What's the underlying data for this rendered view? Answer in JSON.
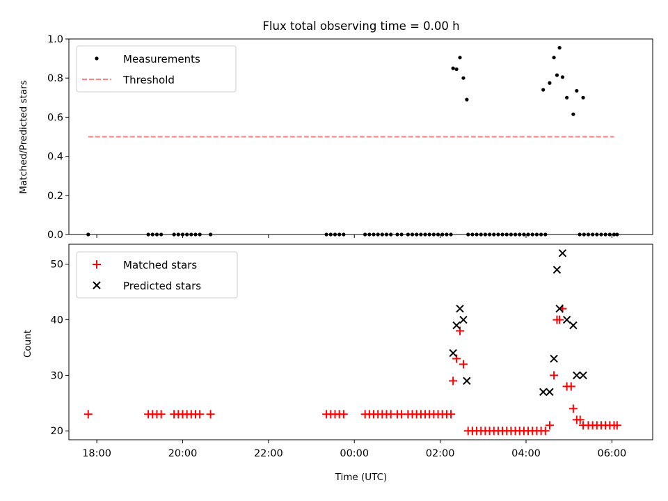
{
  "chart_data": [
    {
      "type": "scatter",
      "title": "Flux total observing time = 0.00 h",
      "xlabel": "",
      "ylabel": "Matched/Predicted stars",
      "ylim": [
        0,
        1
      ],
      "xlim_hours": [
        -6.65,
        6.95
      ],
      "yticks": [
        "0.0",
        "0.2",
        "0.4",
        "0.6",
        "0.8",
        "1.0"
      ],
      "legend_position": "top-left",
      "series": [
        {
          "name": "Measurements",
          "marker": "dot",
          "color": "#000000",
          "points": [
            [
              -6.2,
              0.0
            ],
            [
              -4.8,
              0.0
            ],
            [
              -4.7,
              0.0
            ],
            [
              -4.6,
              0.0
            ],
            [
              -4.5,
              0.0
            ],
            [
              -4.2,
              0.0
            ],
            [
              -4.1,
              0.0
            ],
            [
              -4.0,
              0.0
            ],
            [
              -3.9,
              0.0
            ],
            [
              -3.8,
              0.0
            ],
            [
              -3.7,
              0.0
            ],
            [
              -3.6,
              0.0
            ],
            [
              -3.35,
              0.0
            ],
            [
              -0.65,
              0.0
            ],
            [
              -0.55,
              0.0
            ],
            [
              -0.45,
              0.0
            ],
            [
              -0.35,
              0.0
            ],
            [
              -0.25,
              0.0
            ],
            [
              0.25,
              0.0
            ],
            [
              0.35,
              0.0
            ],
            [
              0.45,
              0.0
            ],
            [
              0.55,
              0.0
            ],
            [
              0.65,
              0.0
            ],
            [
              0.75,
              0.0
            ],
            [
              0.85,
              0.0
            ],
            [
              1.0,
              0.0
            ],
            [
              1.1,
              0.0
            ],
            [
              1.25,
              0.0
            ],
            [
              1.35,
              0.0
            ],
            [
              1.45,
              0.0
            ],
            [
              1.55,
              0.0
            ],
            [
              1.65,
              0.0
            ],
            [
              1.75,
              0.0
            ],
            [
              1.85,
              0.0
            ],
            [
              1.95,
              0.0
            ],
            [
              2.05,
              0.0
            ],
            [
              2.15,
              0.0
            ],
            [
              2.25,
              0.0
            ],
            [
              2.3,
              0.85
            ],
            [
              2.38,
              0.845
            ],
            [
              2.46,
              0.905
            ],
            [
              2.54,
              0.8
            ],
            [
              2.62,
              0.69
            ],
            [
              2.65,
              0.0
            ],
            [
              2.75,
              0.0
            ],
            [
              2.85,
              0.0
            ],
            [
              2.95,
              0.0
            ],
            [
              3.05,
              0.0
            ],
            [
              3.15,
              0.0
            ],
            [
              3.25,
              0.0
            ],
            [
              3.35,
              0.0
            ],
            [
              3.45,
              0.0
            ],
            [
              3.55,
              0.0
            ],
            [
              3.65,
              0.0
            ],
            [
              3.75,
              0.0
            ],
            [
              3.85,
              0.0
            ],
            [
              3.95,
              0.0
            ],
            [
              4.05,
              0.0
            ],
            [
              4.15,
              0.0
            ],
            [
              4.25,
              0.0
            ],
            [
              4.35,
              0.0
            ],
            [
              4.45,
              0.0
            ],
            [
              4.4,
              0.74
            ],
            [
              4.55,
              0.775
            ],
            [
              4.65,
              0.905
            ],
            [
              4.72,
              0.815
            ],
            [
              4.78,
              0.955
            ],
            [
              4.85,
              0.805
            ],
            [
              4.95,
              0.7
            ],
            [
              5.1,
              0.615
            ],
            [
              5.18,
              0.735
            ],
            [
              5.33,
              0.7
            ],
            [
              5.25,
              0.0
            ],
            [
              5.35,
              0.0
            ],
            [
              5.45,
              0.0
            ],
            [
              5.55,
              0.0
            ],
            [
              5.65,
              0.0
            ],
            [
              5.75,
              0.0
            ],
            [
              5.85,
              0.0
            ],
            [
              5.95,
              0.0
            ],
            [
              6.05,
              0.0
            ],
            [
              6.12,
              0.0
            ]
          ]
        },
        {
          "name": "Threshold",
          "marker": "dashed-line",
          "color": "#ff7f7f",
          "points": [
            [
              -6.2,
              0.5
            ],
            [
              6.05,
              0.5
            ]
          ]
        }
      ]
    },
    {
      "type": "scatter",
      "title": "",
      "xlabel": "Time (UTC)",
      "ylabel": "Count",
      "ylim": [
        18.4,
        53.6
      ],
      "xlim_hours": [
        -6.65,
        6.95
      ],
      "xticks": [
        {
          "h": -6,
          "label": "18:00"
        },
        {
          "h": -4,
          "label": "20:00"
        },
        {
          "h": -2,
          "label": "22:00"
        },
        {
          "h": 0,
          "label": "00:00"
        },
        {
          "h": 2,
          "label": "02:00"
        },
        {
          "h": 4,
          "label": "04:00"
        },
        {
          "h": 6,
          "label": "06:00"
        }
      ],
      "yticks": [
        "20",
        "30",
        "40",
        "50"
      ],
      "legend_position": "top-left",
      "series": [
        {
          "name": "Matched stars",
          "marker": "plus",
          "color": "#ff0000",
          "points": [
            [
              -6.2,
              23
            ],
            [
              -4.8,
              23
            ],
            [
              -4.7,
              23
            ],
            [
              -4.6,
              23
            ],
            [
              -4.5,
              23
            ],
            [
              -4.2,
              23
            ],
            [
              -4.1,
              23
            ],
            [
              -4.0,
              23
            ],
            [
              -3.9,
              23
            ],
            [
              -3.8,
              23
            ],
            [
              -3.7,
              23
            ],
            [
              -3.6,
              23
            ],
            [
              -3.35,
              23
            ],
            [
              -0.65,
              23
            ],
            [
              -0.55,
              23
            ],
            [
              -0.45,
              23
            ],
            [
              -0.35,
              23
            ],
            [
              -0.25,
              23
            ],
            [
              0.25,
              23
            ],
            [
              0.35,
              23
            ],
            [
              0.45,
              23
            ],
            [
              0.55,
              23
            ],
            [
              0.65,
              23
            ],
            [
              0.75,
              23
            ],
            [
              0.85,
              23
            ],
            [
              1.0,
              23
            ],
            [
              1.1,
              23
            ],
            [
              1.25,
              23
            ],
            [
              1.35,
              23
            ],
            [
              1.45,
              23
            ],
            [
              1.55,
              23
            ],
            [
              1.65,
              23
            ],
            [
              1.75,
              23
            ],
            [
              1.85,
              23
            ],
            [
              1.95,
              23
            ],
            [
              2.05,
              23
            ],
            [
              2.15,
              23
            ],
            [
              2.25,
              23
            ],
            [
              2.3,
              29
            ],
            [
              2.38,
              33
            ],
            [
              2.46,
              38
            ],
            [
              2.54,
              32
            ],
            [
              2.65,
              20
            ],
            [
              2.75,
              20
            ],
            [
              2.85,
              20
            ],
            [
              2.95,
              20
            ],
            [
              3.05,
              20
            ],
            [
              3.15,
              20
            ],
            [
              3.25,
              20
            ],
            [
              3.35,
              20
            ],
            [
              3.45,
              20
            ],
            [
              3.55,
              20
            ],
            [
              3.65,
              20
            ],
            [
              3.75,
              20
            ],
            [
              3.85,
              20
            ],
            [
              3.95,
              20
            ],
            [
              4.05,
              20
            ],
            [
              4.15,
              20
            ],
            [
              4.25,
              20
            ],
            [
              4.35,
              20
            ],
            [
              4.45,
              20
            ],
            [
              4.55,
              21
            ],
            [
              4.65,
              30
            ],
            [
              4.72,
              40
            ],
            [
              4.78,
              40
            ],
            [
              4.85,
              42
            ],
            [
              4.95,
              28
            ],
            [
              5.05,
              28
            ],
            [
              5.1,
              24
            ],
            [
              5.18,
              22
            ],
            [
              5.26,
              22
            ],
            [
              5.33,
              21
            ],
            [
              5.45,
              21
            ],
            [
              5.55,
              21
            ],
            [
              5.65,
              21
            ],
            [
              5.75,
              21
            ],
            [
              5.85,
              21
            ],
            [
              5.95,
              21
            ],
            [
              6.05,
              21
            ],
            [
              6.12,
              21
            ]
          ]
        },
        {
          "name": "Predicted stars",
          "marker": "x",
          "color": "#000000",
          "points": [
            [
              2.3,
              34
            ],
            [
              2.38,
              39
            ],
            [
              2.46,
              42
            ],
            [
              2.54,
              40
            ],
            [
              2.62,
              29
            ],
            [
              4.4,
              27
            ],
            [
              4.55,
              27
            ],
            [
              4.65,
              33
            ],
            [
              4.72,
              49
            ],
            [
              4.78,
              42
            ],
            [
              4.85,
              52
            ],
            [
              4.95,
              40
            ],
            [
              5.1,
              39
            ],
            [
              5.18,
              30
            ],
            [
              5.33,
              30
            ]
          ]
        }
      ]
    }
  ]
}
